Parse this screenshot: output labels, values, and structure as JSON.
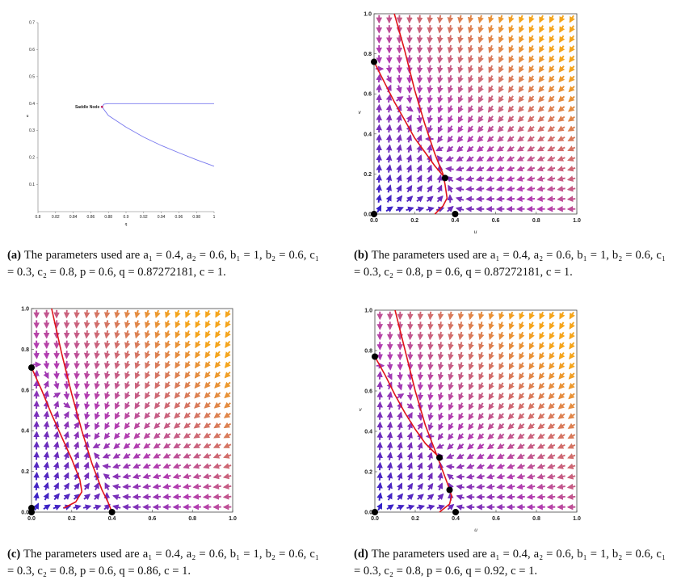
{
  "colors": {
    "arrow_low": "#2b1fc8",
    "arrow_mid": "#b23cb0",
    "arrow_high": "#f5a51c",
    "trajectory": "#e0141a",
    "branch": "#7878ee",
    "point": "#000000"
  },
  "figures": [
    {
      "id": "a",
      "caption_label": "(a)",
      "caption_text": "The parameters used are a₁ = 0.4, a₂ = 0.6, b₁ = 1, b₂ = 0.6, c₁ = 0.3, c₂ = 0.8, p = 0.6, q = 0.87272181, c = 1.",
      "chart_data": {
        "type": "line",
        "xlabel": "q",
        "ylabel": "u",
        "xlim": [
          0.8,
          1.0
        ],
        "ylim": [
          0,
          0.7
        ],
        "x_ticks": [
          "0.8",
          "0.82",
          "0.84",
          "0.86",
          "0.88",
          "0.9",
          "0.92",
          "0.94",
          "0.96",
          "0.98",
          "1"
        ],
        "y_ticks": [
          "0.1",
          "0.2",
          "0.3",
          "0.4",
          "0.5",
          "0.6",
          "0.7"
        ],
        "annotation": "Saddle Node",
        "series": [
          {
            "x": [
              0.8727,
              0.875,
              0.88,
              0.9,
              0.95,
              1.0
            ],
            "values": [
              0.388,
              0.398,
              0.4,
              0.4,
              0.4,
              0.4
            ]
          },
          {
            "x": [
              0.8727,
              0.88,
              0.9,
              0.92,
              0.94,
              0.96,
              0.98,
              1.0
            ],
            "values": [
              0.388,
              0.356,
              0.313,
              0.276,
              0.245,
              0.218,
              0.192,
              0.168
            ]
          }
        ],
        "points": [
          {
            "x": 0.8727,
            "y": 0.388
          }
        ]
      }
    },
    {
      "id": "b",
      "caption_label": "(b)",
      "caption_text": "The parameters used are a₁ = 0.4, a₂ = 0.6, b₁ = 1, b₂ = 0.6, c₁ = 0.3, c₂ = 0.8, p = 0.6, q = 0.87272181, c = 1.",
      "chart_data": {
        "type": "scatter",
        "xlabel": "u",
        "ylabel": "v",
        "xlim": [
          0,
          1
        ],
        "ylim": [
          0,
          1
        ],
        "x_ticks": [
          "0.0",
          "0.2",
          "0.4",
          "0.6",
          "0.8",
          "1.0"
        ],
        "y_ticks": [
          "0.0",
          "0.2",
          "0.4",
          "0.6",
          "0.8",
          "1.0"
        ],
        "equilibria": [
          {
            "x": 0.0,
            "y": 0.0
          },
          {
            "x": 0.0,
            "y": 0.76
          },
          {
            "x": 0.35,
            "y": 0.18
          },
          {
            "x": 0.4,
            "y": 0.0
          }
        ],
        "trajectories": [
          {
            "x": [
              0.1,
              0.15,
              0.2,
              0.25,
              0.3,
              0.34,
              0.35,
              0.36,
              0.34,
              0.3
            ],
            "values": [
              1.0,
              0.82,
              0.62,
              0.45,
              0.3,
              0.2,
              0.15,
              0.08,
              0.04,
              0.0
            ]
          },
          {
            "x": [
              0.0,
              0.05,
              0.1,
              0.15,
              0.2,
              0.25,
              0.3,
              0.35
            ],
            "values": [
              0.76,
              0.66,
              0.56,
              0.47,
              0.38,
              0.31,
              0.24,
              0.18
            ]
          }
        ]
      }
    },
    {
      "id": "c",
      "caption_label": "(c)",
      "caption_text": "The parameters used are a₁ = 0.4, a₂ = 0.6, b₁ = 1, b₂ = 0.6, c₁ = 0.3, c₂ = 0.8, p = 0.6, q = 0.86, c = 1.",
      "chart_data": {
        "type": "scatter",
        "xlim": [
          0,
          1
        ],
        "ylim": [
          0,
          1
        ],
        "x_ticks": [
          "0.0",
          "0.2",
          "0.4",
          "0.6",
          "0.8",
          "1.0"
        ],
        "y_ticks": [
          "0.0",
          "0.2",
          "0.4",
          "0.6",
          "0.8",
          "1.0"
        ],
        "equilibria": [
          {
            "x": 0.0,
            "y": 0.0
          },
          {
            "x": 0.0,
            "y": 0.02
          },
          {
            "x": 0.0,
            "y": 0.71
          },
          {
            "x": 0.4,
            "y": 0.0
          }
        ],
        "trajectories": [
          {
            "x": [
              0.1,
              0.15,
              0.2,
              0.25,
              0.3,
              0.35,
              0.38,
              0.4
            ],
            "values": [
              1.0,
              0.78,
              0.58,
              0.4,
              0.24,
              0.11,
              0.05,
              0.0
            ]
          },
          {
            "x": [
              0.0,
              0.05,
              0.1,
              0.15,
              0.2,
              0.24,
              0.25,
              0.22,
              0.16
            ],
            "values": [
              0.71,
              0.6,
              0.48,
              0.37,
              0.26,
              0.16,
              0.1,
              0.05,
              0.02
            ]
          }
        ]
      }
    },
    {
      "id": "d",
      "caption_label": "(d)",
      "caption_text": "The parameters used are a₁ = 0.4, a₂ = 0.6, b₁ = 1, b₂ = 0.6, c₁ = 0.3, c₂ = 0.8, p = 0.6, q = 0.92, c = 1.",
      "chart_data": {
        "type": "scatter",
        "xlabel": "u",
        "ylabel": "v",
        "xlim": [
          0,
          1
        ],
        "ylim": [
          0,
          1
        ],
        "x_ticks": [
          "0.0",
          "0.2",
          "0.4",
          "0.6",
          "0.8",
          "1.0"
        ],
        "y_ticks": [
          "0.0",
          "0.2",
          "0.4",
          "0.6",
          "0.8",
          "1.0"
        ],
        "equilibria": [
          {
            "x": 0.0,
            "y": 0.0
          },
          {
            "x": 0.0,
            "y": 0.77
          },
          {
            "x": 0.32,
            "y": 0.27
          },
          {
            "x": 0.37,
            "y": 0.11
          },
          {
            "x": 0.4,
            "y": 0.0
          }
        ],
        "trajectories": [
          {
            "x": [
              0.1,
              0.15,
              0.2,
              0.25,
              0.3,
              0.33,
              0.36,
              0.38,
              0.37,
              0.32
            ],
            "values": [
              1.0,
              0.8,
              0.6,
              0.43,
              0.3,
              0.22,
              0.14,
              0.08,
              0.04,
              0.0
            ]
          },
          {
            "x": [
              0.0,
              0.05,
              0.1,
              0.15,
              0.2,
              0.25,
              0.3,
              0.32
            ],
            "values": [
              0.77,
              0.68,
              0.58,
              0.49,
              0.41,
              0.34,
              0.29,
              0.27
            ]
          }
        ]
      }
    }
  ]
}
